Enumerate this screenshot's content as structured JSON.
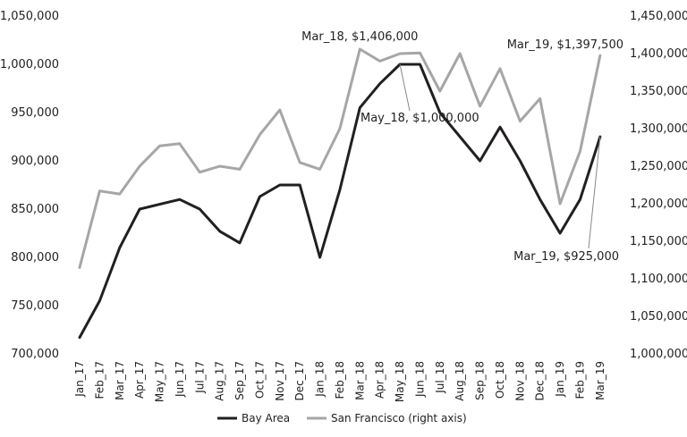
{
  "chart_data": {
    "type": "line",
    "categories": [
      "Jan_17",
      "Feb_17",
      "Mar_17",
      "Apr_17",
      "May_17",
      "Jun_17",
      "Jul_17",
      "Aug_17",
      "Sep_17",
      "Oct_17",
      "Nov_17",
      "Dec_17",
      "Jan_18",
      "Feb_18",
      "Mar_18",
      "Apr_18",
      "May_18",
      "Jun_18",
      "Jul_18",
      "Aug_18",
      "Sep_18",
      "Oct_18",
      "Nov_18",
      "Dec_18",
      "Jan_19",
      "Feb_19",
      "Mar_19"
    ],
    "left_axis": {
      "min": 700000,
      "max": 1050000,
      "ticks": [
        "700,000",
        "750,000",
        "800,000",
        "850,000",
        "900,000",
        "950,000",
        "1,000,000",
        "1,050,000"
      ]
    },
    "right_axis": {
      "min": 1000000,
      "max": 1450000,
      "ticks": [
        "1,000,000",
        "1,050,000",
        "1,100,000",
        "1,150,000",
        "1,200,000",
        "1,250,000",
        "1,300,000",
        "1,350,000",
        "1,400,000",
        "1,450,000"
      ]
    },
    "series": [
      {
        "name": "Bay Area",
        "axis": "left",
        "color": "#231f20",
        "values": [
          717000,
          755000,
          810000,
          850000,
          855000,
          860000,
          850000,
          827000,
          815000,
          863000,
          875000,
          875000,
          800000,
          870000,
          955000,
          980000,
          1000000,
          1000000,
          950000,
          925000,
          900000,
          935000,
          900000,
          860000,
          825000,
          860000,
          925000
        ]
      },
      {
        "name": "San Francisco (right axis)",
        "axis": "right",
        "color": "#a6a6a6",
        "values": [
          1115000,
          1217000,
          1213000,
          1250000,
          1277000,
          1280000,
          1242000,
          1250000,
          1246000,
          1292000,
          1325000,
          1255000,
          1246000,
          1300000,
          1406000,
          1390000,
          1400000,
          1401000,
          1350000,
          1400000,
          1330000,
          1380000,
          1310000,
          1340000,
          1200000,
          1270000,
          1397500
        ]
      }
    ],
    "annotations": [
      {
        "text": "Mar_18, $1,406,000"
      },
      {
        "text": "May_18, $1,000,000"
      },
      {
        "text": "Mar_19, $1,397,500"
      },
      {
        "text": "Mar_19, $925,000"
      }
    ],
    "legend": {
      "placement": "bottom",
      "entries": [
        "Bay Area",
        "San Francisco (right axis)"
      ]
    },
    "grid": false
  }
}
